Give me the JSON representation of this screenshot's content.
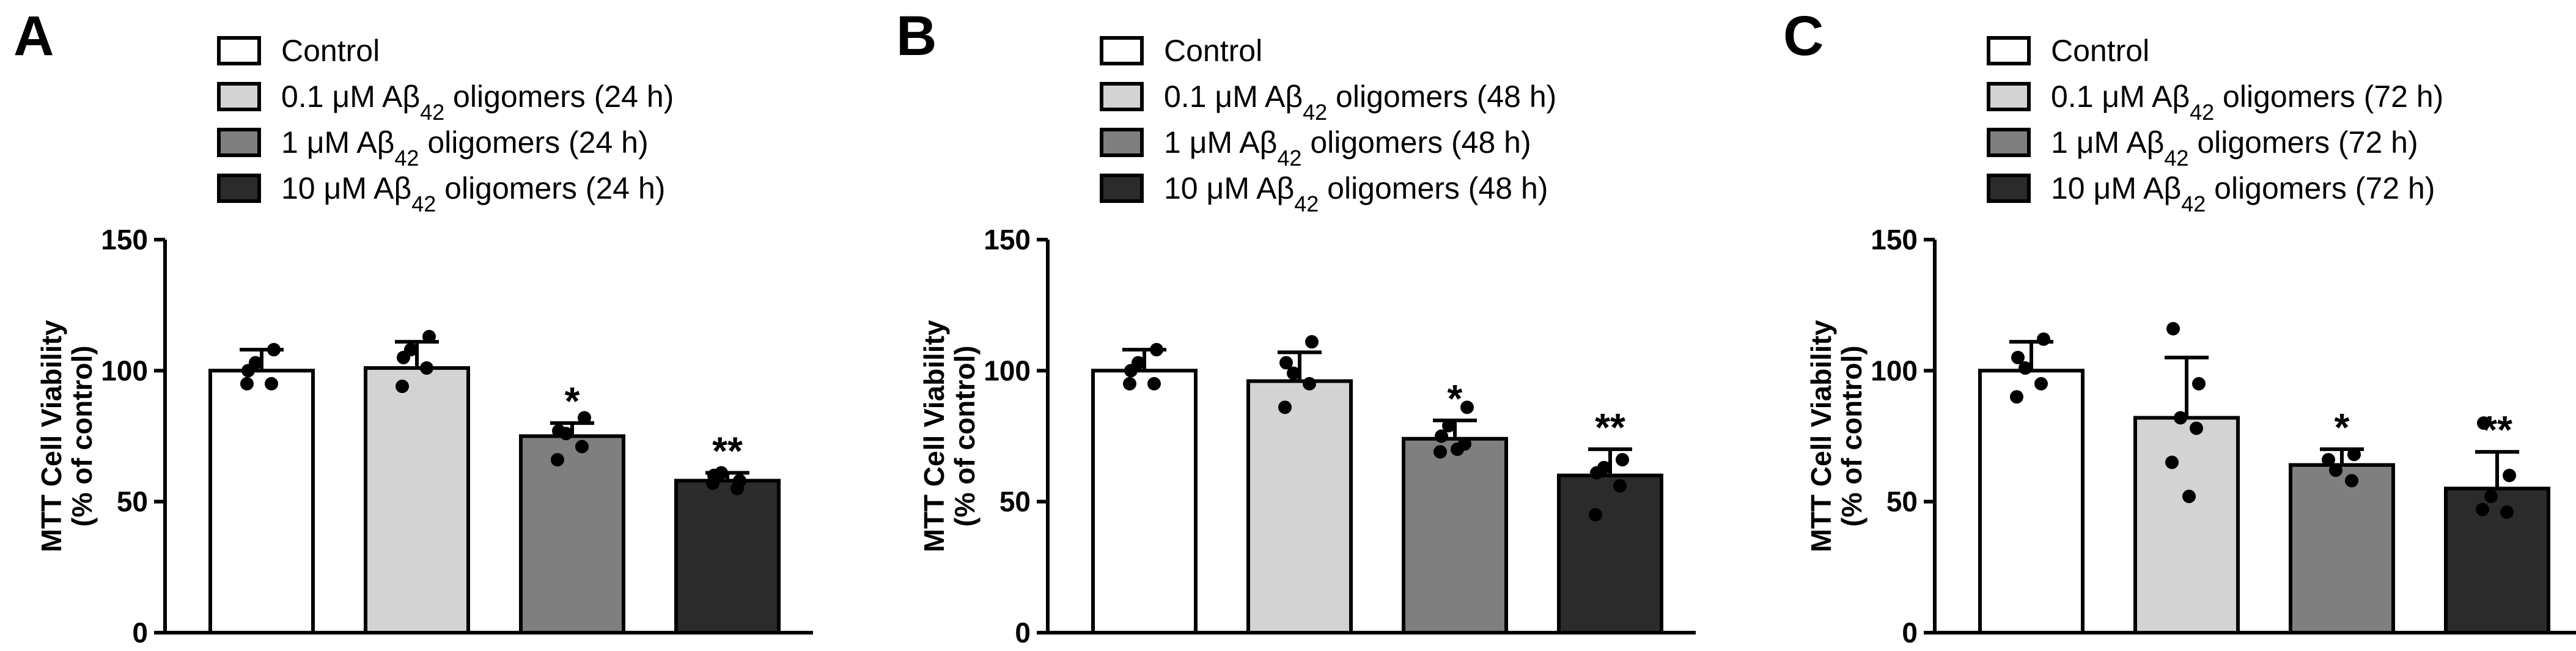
{
  "colors": {
    "control": "#ffffff",
    "dose_0_1": "#d3d3d3",
    "dose_1": "#7f7f7f",
    "dose_10": "#2b2b2b",
    "outline": "#000000"
  },
  "chart_data": [
    {
      "panel": "A",
      "type": "bar",
      "title": "",
      "ylabel_line1": "MTT Cell Viability",
      "ylabel_line2": "(% of control)",
      "xlabel": "",
      "ylim": [
        0,
        150
      ],
      "yticks": [
        0,
        50,
        100,
        150
      ],
      "legend": [
        {
          "prefix": "Control",
          "sub": "",
          "suffix": ""
        },
        {
          "prefix": "0.1 μM Aβ",
          "sub": "42",
          "suffix": " oligomers (24 h)"
        },
        {
          "prefix": "1 μM Aβ",
          "sub": "42",
          "suffix": " oligomers (24 h)"
        },
        {
          "prefix": "10 μM Aβ",
          "sub": "42",
          "suffix": " oligomers (24 h)"
        }
      ],
      "bars": [
        {
          "name": "Control",
          "value": 100,
          "error": 8,
          "sig": "",
          "points": [
            100,
            108,
            103,
            95,
            95
          ]
        },
        {
          "name": "0.1 μM Aβ42 oligomers (24 h)",
          "value": 101,
          "error": 10,
          "sig": "",
          "points": [
            105,
            113,
            108,
            101,
            94
          ]
        },
        {
          "name": "1 μM Aβ42 oligomers (24 h)",
          "value": 75,
          "error": 5,
          "sig": "*",
          "points": [
            77,
            82,
            76,
            71,
            66
          ]
        },
        {
          "name": "10 μM Aβ42 oligomers (24 h)",
          "value": 58,
          "error": 3,
          "sig": "**",
          "points": [
            60,
            58,
            61,
            55,
            57
          ]
        }
      ]
    },
    {
      "panel": "B",
      "type": "bar",
      "title": "",
      "ylabel_line1": "MTT Cell Viability",
      "ylabel_line2": "(% of control)",
      "xlabel": "",
      "ylim": [
        0,
        150
      ],
      "yticks": [
        0,
        50,
        100,
        150
      ],
      "legend": [
        {
          "prefix": "Control",
          "sub": "",
          "suffix": ""
        },
        {
          "prefix": "0.1 μM Aβ",
          "sub": "42",
          "suffix": " oligomers (48 h)"
        },
        {
          "prefix": "1 μM Aβ",
          "sub": "42",
          "suffix": " oligomers (48 h)"
        },
        {
          "prefix": "10 μM Aβ",
          "sub": "42",
          "suffix": " oligomers (48 h)"
        }
      ],
      "bars": [
        {
          "name": "Control",
          "value": 100,
          "error": 8,
          "sig": "",
          "points": [
            100,
            108,
            103,
            95,
            95
          ]
        },
        {
          "name": "0.1 μM Aβ42 oligomers (48 h)",
          "value": 96,
          "error": 11,
          "sig": "",
          "points": [
            103,
            111,
            99,
            95,
            86
          ]
        },
        {
          "name": "1 μM Aβ42 oligomers (48 h)",
          "value": 74,
          "error": 7,
          "sig": "*",
          "points": [
            75,
            86,
            79,
            72,
            69,
            70
          ]
        },
        {
          "name": "10 μM Aβ42 oligomers (48 h)",
          "value": 60,
          "error": 10,
          "sig": "**",
          "points": [
            61,
            66,
            63,
            56,
            45
          ]
        }
      ]
    },
    {
      "panel": "C",
      "type": "bar",
      "title": "",
      "ylabel_line1": "MTT Cell Viability",
      "ylabel_line2": "(% of control)",
      "xlabel": "",
      "ylim": [
        0,
        150
      ],
      "yticks": [
        0,
        50,
        100,
        150
      ],
      "legend": [
        {
          "prefix": "Control",
          "sub": "",
          "suffix": ""
        },
        {
          "prefix": "0.1 μM Aβ",
          "sub": "42",
          "suffix": " oligomers (72 h)"
        },
        {
          "prefix": "1 μM Aβ",
          "sub": "42",
          "suffix": " oligomers (72 h)"
        },
        {
          "prefix": "10 μM Aβ",
          "sub": "42",
          "suffix": " oligomers (72 h)"
        }
      ],
      "bars": [
        {
          "name": "Control",
          "value": 100,
          "error": 11,
          "sig": "",
          "points": [
            105,
            112,
            101,
            95,
            90
          ]
        },
        {
          "name": "0.1 μM Aβ42 oligomers (72 h)",
          "value": 82,
          "error": 23,
          "sig": "",
          "points": [
            116,
            95,
            82,
            78,
            65,
            52
          ]
        },
        {
          "name": "1 μM Aβ42 oligomers (72 h)",
          "value": 64,
          "error": 6,
          "sig": "*",
          "points": [
            66,
            68,
            62,
            58
          ]
        },
        {
          "name": "10 μM Aβ42 oligomers (72 h)",
          "value": 55,
          "error": 14,
          "sig": "**",
          "points": [
            80,
            60,
            52,
            46,
            47
          ]
        }
      ]
    }
  ]
}
